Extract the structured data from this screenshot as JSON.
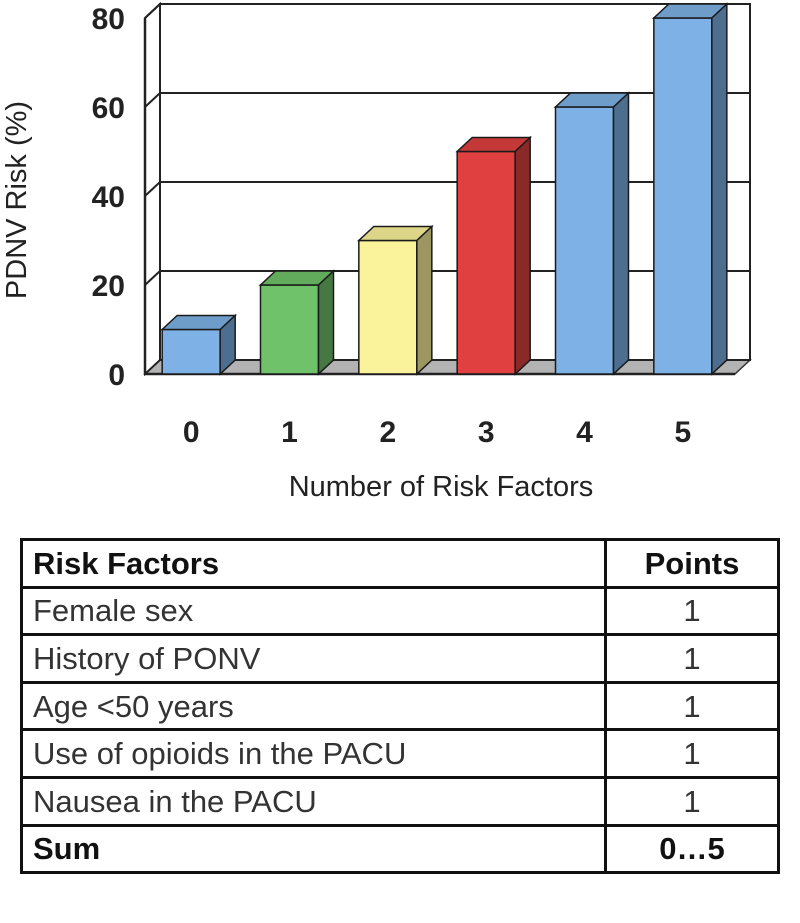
{
  "chart_data": {
    "type": "bar",
    "categories": [
      "0",
      "1",
      "2",
      "3",
      "4",
      "5"
    ],
    "values": [
      10,
      20,
      30,
      50,
      60,
      80
    ],
    "colors": [
      "#7eb2e6",
      "#6fc26a",
      "#fbf39c",
      "#e04040",
      "#7eb2e6",
      "#7eb2e6"
    ],
    "title": "",
    "xlabel": "Number of Risk Factors",
    "ylabel": "PDNV Risk (%)",
    "ylim": [
      0,
      80
    ],
    "yticks": [
      "0",
      "20",
      "40",
      "60",
      "80"
    ],
    "grid": true,
    "style": "3d"
  },
  "table": {
    "headers": [
      "Risk Factors",
      "Points"
    ],
    "rows": [
      {
        "factor": "Female sex",
        "points": "1"
      },
      {
        "factor": "History of PONV",
        "points": "1"
      },
      {
        "factor": "Age <50 years",
        "points": "1"
      },
      {
        "factor": "Use of opioids in the PACU",
        "points": "1"
      },
      {
        "factor": "Nausea in the PACU",
        "points": "1"
      }
    ],
    "sum": {
      "label": "Sum",
      "points": "0…5"
    }
  }
}
